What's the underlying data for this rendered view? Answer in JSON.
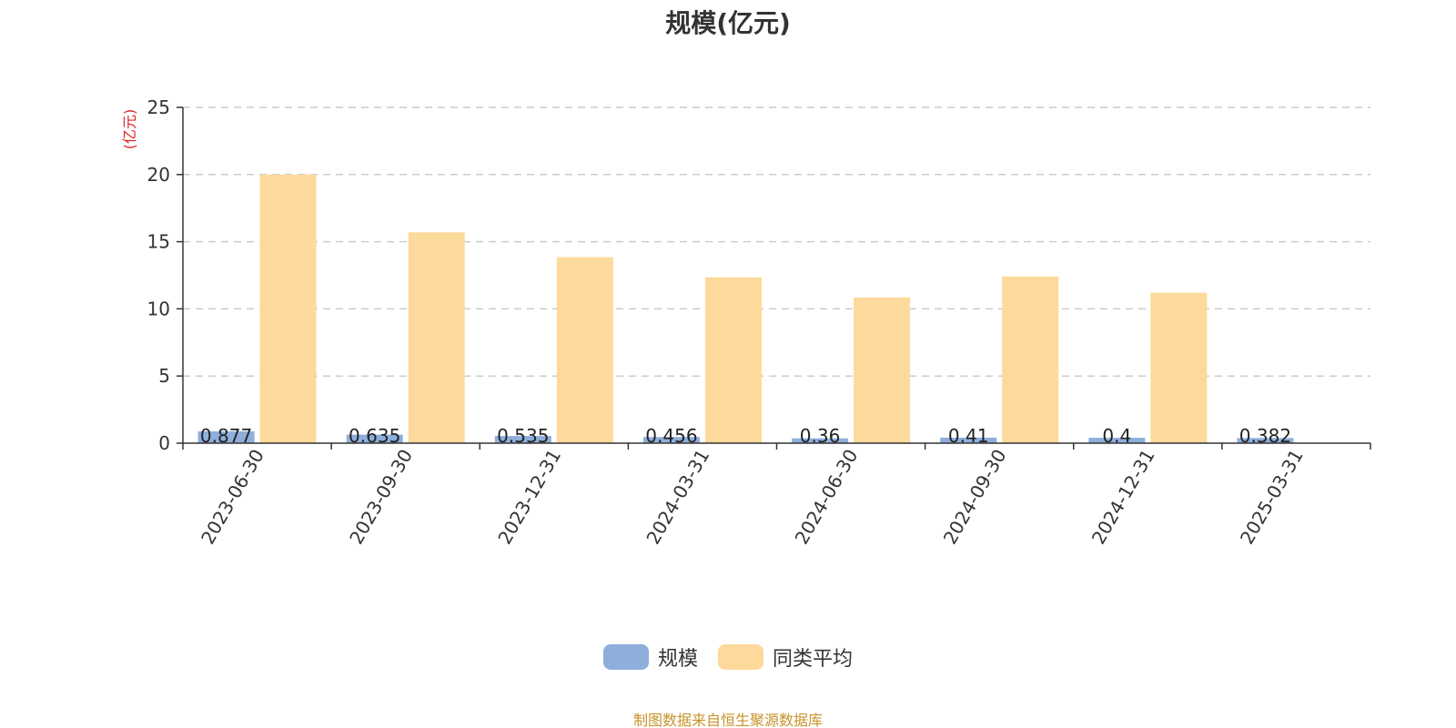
{
  "chart_data": {
    "type": "bar",
    "title": "规模(亿元)",
    "unit_label": "(亿元)",
    "categories": [
      "2023-06-30",
      "2023-09-30",
      "2023-12-31",
      "2024-03-31",
      "2024-06-30",
      "2024-09-30",
      "2024-12-31",
      "2025-03-31"
    ],
    "series": [
      {
        "name": "规模",
        "values": [
          0.877,
          0.635,
          0.535,
          0.456,
          0.36,
          0.41,
          0.4,
          0.382
        ],
        "labels": [
          "0.877",
          "0.635",
          "0.535",
          "0.456",
          "0.36",
          "0.41",
          "0.4",
          "0.382"
        ],
        "color": "#8eaedc"
      },
      {
        "name": "同类平均",
        "values": [
          20.0,
          15.7,
          13.85,
          12.35,
          10.85,
          12.4,
          11.2,
          null
        ],
        "color": "#fdd99b"
      }
    ],
    "ylim": [
      0,
      25
    ],
    "yticks": [
      0,
      5,
      10,
      15,
      20,
      25
    ],
    "grid": true,
    "legend_position": "bottom"
  },
  "source_note": "制图数据来自恒生聚源数据库",
  "colors": {
    "axis": "#333333",
    "grid": "#cccccc",
    "unit_label": "#e02020",
    "source_note": "#c8922a"
  }
}
